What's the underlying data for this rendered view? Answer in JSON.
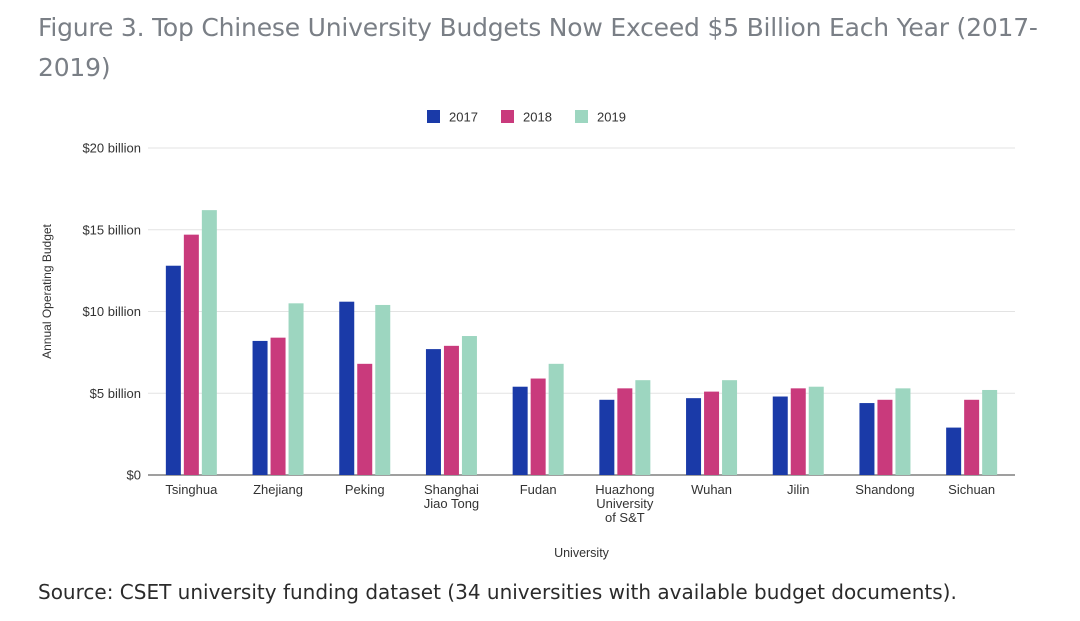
{
  "figure_title": "Figure 3. Top Chinese University Budgets Now Exceed $5 Billion Each Year (2017-2019)",
  "source_note": "Source: CSET university funding dataset (34 universities with available budget documents).",
  "colors": {
    "2017": "#1a3aa8",
    "2018": "#c93a7c",
    "2019": "#9dd6c0",
    "grid": "#e3e3e3",
    "axis": "#666666"
  },
  "chart_data": {
    "type": "bar",
    "title": "",
    "xlabel": "University",
    "ylabel": "Annual Operating Budget",
    "ylim": [
      0,
      20
    ],
    "yticks": [
      {
        "value": 0,
        "label": "$0"
      },
      {
        "value": 5,
        "label": "$5 billion"
      },
      {
        "value": 10,
        "label": "$10 billion"
      },
      {
        "value": 15,
        "label": "$15 billion"
      },
      {
        "value": 20,
        "label": "$20 billion"
      }
    ],
    "categories": [
      "Tsinghua",
      "Zhejiang",
      "Peking",
      "Shanghai Jiao Tong",
      "Fudan",
      "Huazhong University of S&T",
      "Wuhan",
      "Jilin",
      "Shandong",
      "Sichuan"
    ],
    "category_lines": [
      [
        "Tsinghua"
      ],
      [
        "Zhejiang"
      ],
      [
        "Peking"
      ],
      [
        "Shanghai",
        "Jiao Tong"
      ],
      [
        "Fudan"
      ],
      [
        "Huazhong",
        "University",
        "of S&T"
      ],
      [
        "Wuhan"
      ],
      [
        "Jilin"
      ],
      [
        "Shandong"
      ],
      [
        "Sichuan"
      ]
    ],
    "legend_position": "top-center",
    "series": [
      {
        "name": "2017",
        "values": [
          12.8,
          8.2,
          10.6,
          7.7,
          5.4,
          4.6,
          4.7,
          4.8,
          4.4,
          2.9
        ]
      },
      {
        "name": "2018",
        "values": [
          14.7,
          8.4,
          6.8,
          7.9,
          5.9,
          5.3,
          5.1,
          5.3,
          4.6,
          4.6
        ]
      },
      {
        "name": "2019",
        "values": [
          16.2,
          10.5,
          10.4,
          8.5,
          6.8,
          5.8,
          5.8,
          5.4,
          5.3,
          5.2
        ]
      }
    ]
  }
}
